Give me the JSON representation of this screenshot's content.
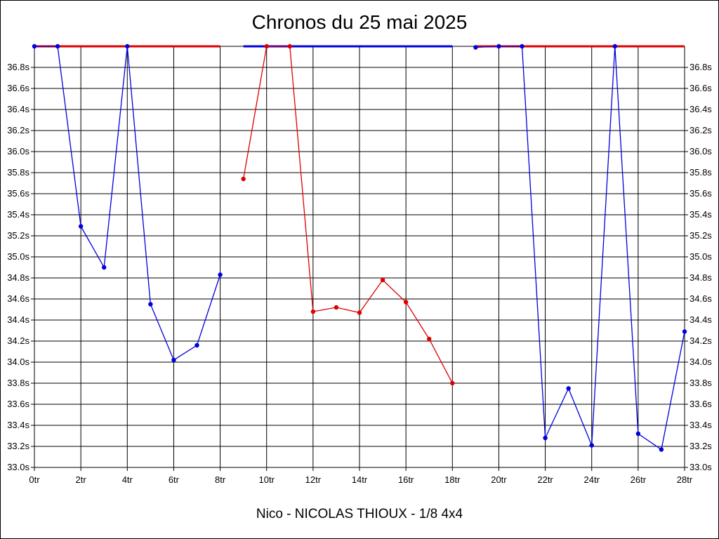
{
  "chart_data": {
    "type": "line",
    "title": "Chronos du 25 mai 2025",
    "footer": "Nico - NICOLAS THIOUX - 1/8 4x4",
    "xlabel": "",
    "ylabel": "",
    "xlim": [
      0,
      28
    ],
    "ylim": [
      33.0,
      37.0
    ],
    "grid": true,
    "x_ticks": [
      0,
      2,
      4,
      6,
      8,
      10,
      12,
      14,
      16,
      18,
      20,
      22,
      24,
      26,
      28
    ],
    "x_tick_labels": [
      "0tr",
      "2tr",
      "4tr",
      "6tr",
      "8tr",
      "10tr",
      "12tr",
      "14tr",
      "16tr",
      "18tr",
      "20tr",
      "22tr",
      "24tr",
      "26tr",
      "28tr"
    ],
    "y_ticks": [
      33.0,
      33.2,
      33.4,
      33.6,
      33.8,
      34.0,
      34.2,
      34.4,
      34.6,
      34.8,
      35.0,
      35.2,
      35.4,
      35.6,
      35.8,
      36.0,
      36.2,
      36.4,
      36.6,
      36.8
    ],
    "y_tick_labels": [
      "33.0s",
      "33.2s",
      "33.4s",
      "33.6s",
      "33.8s",
      "34.0s",
      "34.2s",
      "34.4s",
      "34.6s",
      "34.8s",
      "35.0s",
      "35.2s",
      "35.4s",
      "35.6s",
      "35.8s",
      "36.0s",
      "36.2s",
      "36.4s",
      "36.6s",
      "36.8s"
    ],
    "colors": {
      "blue": "#0000dd",
      "red": "#dd0000",
      "grid": "#000000"
    },
    "clipped_lines": [
      {
        "color": "red",
        "x": [
          0,
          8
        ]
      },
      {
        "color": "blue",
        "x": [
          9,
          18
        ]
      },
      {
        "color": "red",
        "x": [
          19,
          28
        ]
      }
    ],
    "series": [
      {
        "color": "blue",
        "x": [
          0,
          1,
          2,
          3,
          4,
          5,
          6,
          7,
          8
        ],
        "y": [
          37.0,
          37.0,
          35.29,
          34.9,
          37.0,
          34.55,
          34.02,
          34.16,
          34.83
        ]
      },
      {
        "color": "red",
        "x": [
          9,
          10,
          11,
          12,
          13,
          14,
          15,
          16,
          17,
          18
        ],
        "y": [
          35.74,
          37.0,
          37.0,
          34.48,
          34.52,
          34.47,
          34.78,
          34.57,
          34.22,
          33.8
        ]
      },
      {
        "color": "blue",
        "x": [
          19,
          20,
          21,
          22,
          23,
          24,
          25,
          26,
          27,
          28
        ],
        "y": [
          36.99,
          37.0,
          37.0,
          33.28,
          33.75,
          33.21,
          37.0,
          33.32,
          33.17,
          34.29
        ]
      }
    ]
  }
}
